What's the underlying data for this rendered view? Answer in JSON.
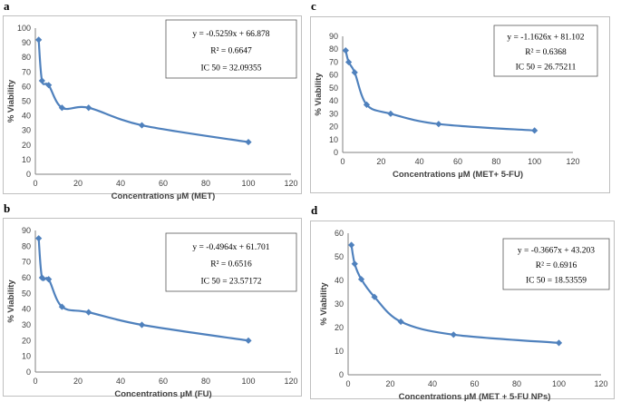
{
  "chart_data": [
    {
      "type": "line",
      "panel_label": "a",
      "xlabel": "Concentrations µM (MET)",
      "ylabel": "% Viability",
      "xlim": [
        0,
        120
      ],
      "ylim": [
        0,
        100
      ],
      "xticks": [
        0,
        20,
        40,
        60,
        80,
        100,
        120
      ],
      "yticks": [
        0,
        10,
        20,
        30,
        40,
        50,
        60,
        70,
        80,
        90,
        100
      ],
      "x": [
        1.56,
        3.125,
        6.25,
        12.5,
        25,
        50,
        100
      ],
      "values": [
        92,
        64,
        61,
        45.5,
        45.5,
        33.5,
        22
      ],
      "annotation": [
        "y = -0.5259x + 66.878",
        "R² = 0.6647",
        "IC 50 = 32.09355"
      ],
      "annotation_pos": "top-right"
    },
    {
      "type": "line",
      "panel_label": "c",
      "xlabel": "Concentrations µM (MET+ 5-FU)",
      "ylabel": "% Viability",
      "xlim": [
        0,
        120
      ],
      "ylim": [
        0,
        90
      ],
      "xticks": [
        0,
        20,
        40,
        60,
        80,
        100,
        120
      ],
      "yticks": [
        0,
        10,
        20,
        30,
        40,
        50,
        60,
        70,
        80,
        90
      ],
      "x": [
        1.56,
        3.125,
        6.25,
        12.5,
        25,
        50,
        100
      ],
      "values": [
        79,
        70,
        62,
        37,
        30,
        22,
        17
      ],
      "annotation": [
        "y = -1.1626x + 81.102",
        "R² = 0.6368",
        "IC 50 = 26.75211"
      ],
      "annotation_pos": "top-right"
    },
    {
      "type": "line",
      "panel_label": "b",
      "xlabel": "Concentrations µM (FU)",
      "ylabel": "% Viability",
      "xlim": [
        0,
        120
      ],
      "ylim": [
        0,
        90
      ],
      "xticks": [
        0,
        20,
        40,
        60,
        80,
        100,
        120
      ],
      "yticks": [
        0,
        10,
        20,
        30,
        40,
        50,
        60,
        70,
        80,
        90
      ],
      "x": [
        1.56,
        3.125,
        6.25,
        12.5,
        25,
        50,
        100
      ],
      "values": [
        85,
        60,
        59,
        41.5,
        38,
        30,
        20
      ],
      "annotation": [
        "y = -0.4964x + 61.701",
        "R² = 0.6516",
        "IC 50 = 23.57172"
      ],
      "annotation_pos": "top-right"
    },
    {
      "type": "line",
      "panel_label": "d",
      "xlabel": "Concentrations µM (MET + 5-FU NPs)",
      "ylabel": "% Viability",
      "xlim": [
        0,
        120
      ],
      "ylim": [
        0,
        60
      ],
      "xticks": [
        0,
        20,
        40,
        60,
        80,
        100,
        120
      ],
      "yticks": [
        0,
        10,
        20,
        30,
        40,
        50,
        60
      ],
      "x": [
        1.56,
        3.125,
        6.25,
        12.5,
        25,
        50,
        100
      ],
      "values": [
        55,
        47,
        40.5,
        33,
        22.5,
        17,
        13.5
      ],
      "annotation": [
        "y = -0.3667x + 43.203",
        "R² = 0.6916",
        "IC 50 = 18.53559"
      ],
      "annotation_pos": "top-right"
    }
  ],
  "style": {
    "series_color": "#4f81bd",
    "frame_color": "#bfbfbf"
  }
}
